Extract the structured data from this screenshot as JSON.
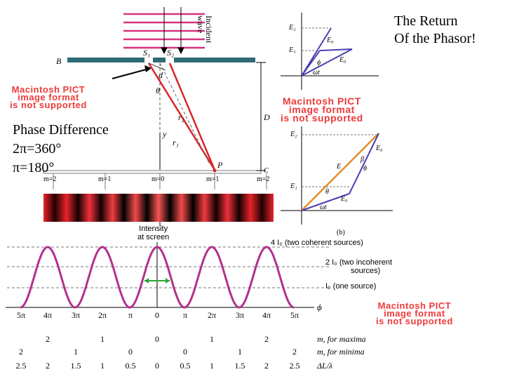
{
  "title_lines": [
    "The Return",
    "Of the Phasor!"
  ],
  "phase_lines": [
    "Phase Difference",
    "2π=360°",
    "π=180°"
  ],
  "pict_notice": [
    "Macintosh PICT",
    "image format",
    "is not supported"
  ],
  "slit_diagram": {
    "incident_wave": [
      "Incident",
      "wave"
    ],
    "barrier_label": "B",
    "slits": [
      "S₁",
      "S₂"
    ],
    "screen_label": "C",
    "distance_label": "D",
    "angle_label": "θ",
    "ray_labels": [
      "r₁",
      "r₂"
    ],
    "path_label": "d",
    "y_label": "y",
    "point_label": "P",
    "order_labels": [
      "m=2",
      "m=1",
      "m=0",
      "m=1",
      "m=2"
    ]
  },
  "phasor_top": {
    "labels": [
      "E₂",
      "E₁",
      "E₀",
      "E₀",
      "ωt",
      "ϕ"
    ]
  },
  "phasor_bottom": {
    "labels": [
      "E₂",
      "E₁",
      "E",
      "E₀",
      "E₀",
      "β",
      "θ",
      "ϕ",
      "ωt"
    ],
    "caption": "(b)"
  },
  "intensity": {
    "heading": [
      "Intensity",
      "at screen"
    ],
    "levels": [
      "4 I₀ (two coherent sources)",
      "2 I₀ (two incoherent",
      "sources)",
      "I₀ (one source)"
    ],
    "axis_label": "ϕ",
    "ticks": [
      "5π",
      "4π",
      "3π",
      "2π",
      "π",
      "0",
      "π",
      "2π",
      "3π",
      "4π",
      "5π"
    ]
  },
  "order_rows": {
    "maxima": {
      "values": [
        "2",
        "1",
        "0",
        "1",
        "2"
      ],
      "label": "m, for maxima"
    },
    "minima": {
      "values": [
        "2",
        "1",
        "0",
        "0",
        "1",
        "2"
      ],
      "label": "m, for minima"
    },
    "path": {
      "values": [
        "2.5",
        "2",
        "1.5",
        "1",
        "0.5",
        "0",
        "0.5",
        "1",
        "1.5",
        "2",
        "2.5"
      ],
      "label": "ΔL/λ"
    }
  },
  "colors": {
    "curve": "#b2318e",
    "pict": "#ee3a3a",
    "barrier": "#2e6b74",
    "wave": "#d6337f",
    "ray": "#d9262b",
    "phasor": "#4a3fb3",
    "resultant": "#e88a24"
  }
}
